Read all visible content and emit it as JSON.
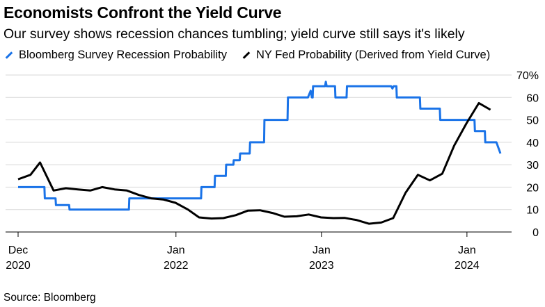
{
  "title": "Economists Confront the Yield Curve",
  "subtitle": "Our survey shows recession chances tumbling; yield curve still says it's likely",
  "source": "Source: Bloomberg",
  "chart_data": {
    "type": "line",
    "title": "Economists Confront the Yield Curve",
    "subtitle": "Our survey shows recession chances tumbling; yield curve still says it's likely",
    "xlabel": "",
    "ylabel": "",
    "ylim": [
      0,
      70
    ],
    "y_ticks": [
      0,
      10,
      20,
      30,
      40,
      50,
      60,
      70
    ],
    "y_tick_labels": [
      "0",
      "10",
      "20",
      "30",
      "40",
      "50",
      "60",
      "70%"
    ],
    "x_ticks": [
      {
        "date": "2020-12-01",
        "line1": "Dec",
        "line2": "2020"
      },
      {
        "date": "2022-01-01",
        "line1": "Jan",
        "line2": "2022"
      },
      {
        "date": "2023-01-01",
        "line1": "Jan",
        "line2": "2023"
      },
      {
        "date": "2024-01-01",
        "line1": "Jan",
        "line2": "2024"
      }
    ],
    "grid": true,
    "legend_position": "top-left",
    "series": [
      {
        "name": "Bloomberg Survey Recession Probability",
        "color": "#1a73e8",
        "step": true,
        "points": [
          [
            "2020-12-01",
            20
          ],
          [
            "2021-02-05",
            20
          ],
          [
            "2021-02-06",
            15
          ],
          [
            "2021-03-05",
            15
          ],
          [
            "2021-03-06",
            12
          ],
          [
            "2021-04-08",
            12
          ],
          [
            "2021-04-09",
            10
          ],
          [
            "2021-09-05",
            10
          ],
          [
            "2021-09-06",
            15
          ],
          [
            "2021-12-22",
            15
          ],
          [
            "2021-12-23",
            15
          ],
          [
            "2022-03-05",
            15
          ],
          [
            "2022-03-06",
            20
          ],
          [
            "2022-04-08",
            20
          ],
          [
            "2022-04-09",
            25
          ],
          [
            "2022-05-06",
            25
          ],
          [
            "2022-05-07",
            30
          ],
          [
            "2022-05-25",
            30
          ],
          [
            "2022-05-26",
            32
          ],
          [
            "2022-06-10",
            32
          ],
          [
            "2022-06-11",
            35
          ],
          [
            "2022-07-05",
            35
          ],
          [
            "2022-07-06",
            40
          ],
          [
            "2022-08-10",
            40
          ],
          [
            "2022-08-11",
            50
          ],
          [
            "2022-10-08",
            50
          ],
          [
            "2022-10-09",
            60
          ],
          [
            "2022-11-28",
            60
          ],
          [
            "2022-12-05",
            63
          ],
          [
            "2022-12-08",
            60
          ],
          [
            "2022-12-10",
            60
          ],
          [
            "2022-12-11",
            65
          ],
          [
            "2023-01-10",
            65
          ],
          [
            "2023-01-12",
            67
          ],
          [
            "2023-01-14",
            65
          ],
          [
            "2023-02-04",
            65
          ],
          [
            "2023-02-05",
            60
          ],
          [
            "2023-03-05",
            60
          ],
          [
            "2023-03-06",
            65
          ],
          [
            "2023-06-25",
            65
          ],
          [
            "2023-06-28",
            64
          ],
          [
            "2023-07-01",
            65
          ],
          [
            "2023-07-08",
            65
          ],
          [
            "2023-07-09",
            60
          ],
          [
            "2023-09-05",
            60
          ],
          [
            "2023-09-06",
            55
          ],
          [
            "2023-10-25",
            55
          ],
          [
            "2023-10-26",
            50
          ],
          [
            "2024-01-20",
            50
          ],
          [
            "2024-01-21",
            45
          ],
          [
            "2024-02-15",
            45
          ],
          [
            "2024-02-16",
            40
          ],
          [
            "2024-03-15",
            40
          ],
          [
            "2024-03-25",
            35
          ]
        ]
      },
      {
        "name": "NY Fed Probability (Derived from Yield Curve)",
        "color": "#000000",
        "step": false,
        "points": [
          [
            "2020-12-01",
            23.5
          ],
          [
            "2021-01-01",
            25.5
          ],
          [
            "2021-01-25",
            31
          ],
          [
            "2021-02-28",
            18.5
          ],
          [
            "2021-03-31",
            19.5
          ],
          [
            "2021-04-30",
            19
          ],
          [
            "2021-05-31",
            18.5
          ],
          [
            "2021-06-30",
            20
          ],
          [
            "2021-07-31",
            19
          ],
          [
            "2021-08-31",
            18.5
          ],
          [
            "2021-09-30",
            16.5
          ],
          [
            "2021-10-31",
            15
          ],
          [
            "2021-11-30",
            14.5
          ],
          [
            "2021-12-31",
            13
          ],
          [
            "2022-01-31",
            10
          ],
          [
            "2022-02-28",
            6.5
          ],
          [
            "2022-03-31",
            6
          ],
          [
            "2022-04-30",
            6.2
          ],
          [
            "2022-05-31",
            7.5
          ],
          [
            "2022-06-30",
            9.5
          ],
          [
            "2022-07-31",
            9.7
          ],
          [
            "2022-08-31",
            8.5
          ],
          [
            "2022-09-30",
            6.8
          ],
          [
            "2022-10-31",
            7
          ],
          [
            "2022-11-30",
            7.8
          ],
          [
            "2022-12-31",
            6.5
          ],
          [
            "2023-01-31",
            6.2
          ],
          [
            "2023-02-28",
            6.3
          ],
          [
            "2023-03-31",
            5.3
          ],
          [
            "2023-04-30",
            3.7
          ],
          [
            "2023-05-31",
            4.2
          ],
          [
            "2023-06-30",
            6.2
          ],
          [
            "2023-07-31",
            17.5
          ],
          [
            "2023-08-31",
            25.5
          ],
          [
            "2023-09-30",
            23
          ],
          [
            "2023-10-31",
            26
          ],
          [
            "2023-11-30",
            38.5
          ],
          [
            "2023-12-31",
            48.5
          ],
          [
            "2024-01-31",
            57.5
          ],
          [
            "2024-02-29",
            54.5
          ]
        ]
      }
    ]
  }
}
